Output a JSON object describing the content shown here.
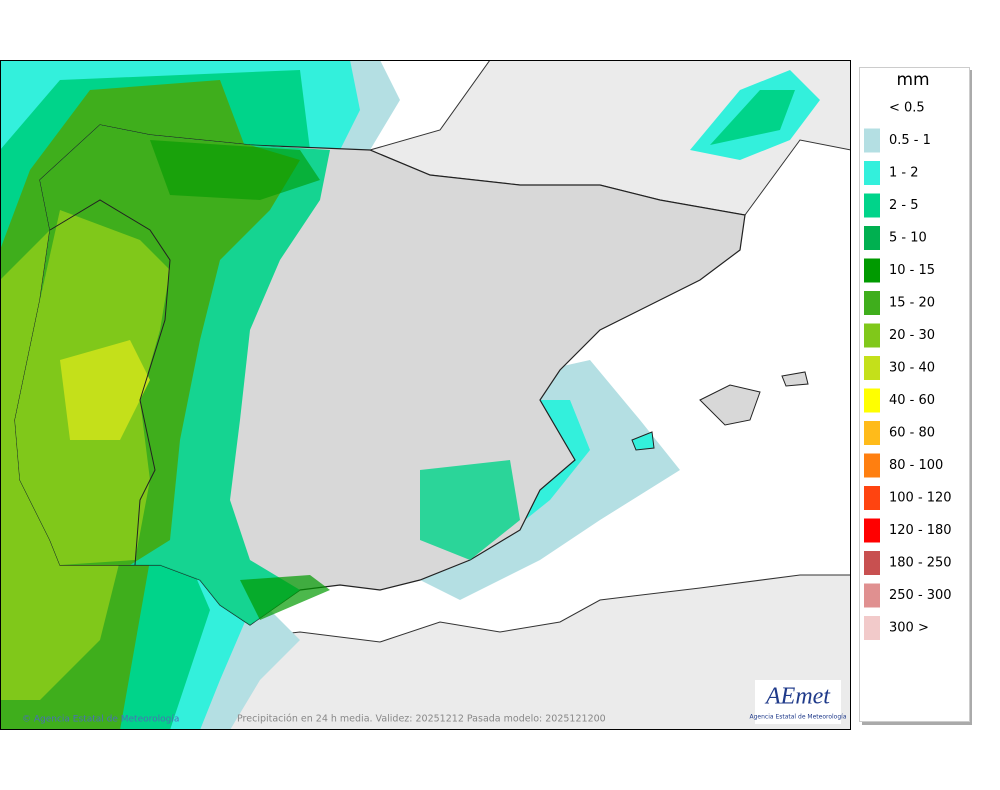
{
  "map": {
    "copyright": "© Agencia Estatal de Meteorología",
    "footer": "Precipitación en 24 h media. Validez: 20251212 Pasada modelo: 2025121200",
    "logo": {
      "text": "AEmet",
      "subtitle": "Agencia Estatal de Meteorología"
    }
  },
  "legend": {
    "title": "mm",
    "items": [
      {
        "label": "< 0.5",
        "color": null
      },
      {
        "label": "0.5 - 1",
        "color": "#b4dfe3"
      },
      {
        "label": "1 - 2",
        "color": "#33f0dc"
      },
      {
        "label": "2 - 5",
        "color": "#00d48a"
      },
      {
        "label": "5 - 10",
        "color": "#00b050"
      },
      {
        "label": "10 - 15",
        "color": "#009a00"
      },
      {
        "label": "15 - 20",
        "color": "#3fae1c"
      },
      {
        "label": "20 - 30",
        "color": "#80c81a"
      },
      {
        "label": "30 - 40",
        "color": "#c4e01a"
      },
      {
        "label": "40 - 60",
        "color": "#ffff00"
      },
      {
        "label": "60 - 80",
        "color": "#ffbb1a"
      },
      {
        "label": "80 - 100",
        "color": "#ff7f10"
      },
      {
        "label": "100 - 120",
        "color": "#ff4410"
      },
      {
        "label": "120 - 180",
        "color": "#ff0000"
      },
      {
        "label": "180 - 250",
        "color": "#c85050"
      },
      {
        "label": "250 - 300",
        "color": "#e09090"
      },
      {
        "label": "300 >",
        "color": "#f2caca"
      }
    ]
  }
}
